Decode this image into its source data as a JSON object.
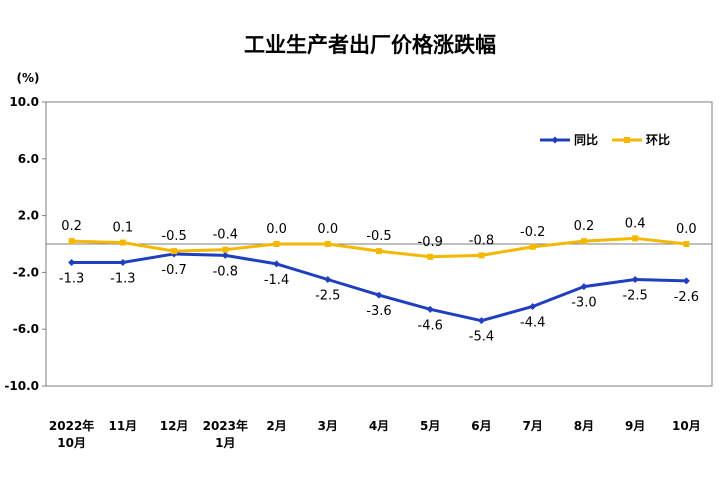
{
  "chart_data": {
    "type": "line",
    "title": "工业生产者出厂价格涨跌幅",
    "unit_label": "(%)",
    "ylim": [
      -10.0,
      10.0
    ],
    "yticks": [
      "10.0",
      "6.0",
      "2.0",
      "-2.0",
      "-6.0",
      "-10.0"
    ],
    "ytick_values": [
      10,
      6,
      2,
      -2,
      -6,
      -10
    ],
    "categories": [
      [
        "2022年",
        "10月"
      ],
      [
        "11月"
      ],
      [
        "12月"
      ],
      [
        "2023年",
        "1月"
      ],
      [
        "2月"
      ],
      [
        "3月"
      ],
      [
        "4月"
      ],
      [
        "5月"
      ],
      [
        "6月"
      ],
      [
        "7月"
      ],
      [
        "8月"
      ],
      [
        "9月"
      ],
      [
        "10月"
      ]
    ],
    "legend_position": "top-right",
    "grid": false,
    "series": [
      {
        "name": "同比",
        "color": "#1f3fbf",
        "values": [
          -1.3,
          -1.3,
          -0.7,
          -0.8,
          -1.4,
          -2.5,
          -3.6,
          -4.6,
          -5.4,
          -4.4,
          -3.0,
          -2.5,
          -2.6
        ],
        "labels": [
          "-1.3",
          "-1.3",
          "-0.7",
          "-0.8",
          "-1.4",
          "-2.5",
          "-3.6",
          "-4.6",
          "-5.4",
          "-4.4",
          "-3.0",
          "-2.5",
          "-2.6"
        ],
        "label_position": "below"
      },
      {
        "name": "环比",
        "color": "#f5b800",
        "values": [
          0.2,
          0.1,
          -0.5,
          -0.4,
          0.0,
          0.0,
          -0.5,
          -0.9,
          -0.8,
          -0.2,
          0.2,
          0.4,
          0.0
        ],
        "labels": [
          "0.2",
          "0.1",
          "-0.5",
          "-0.4",
          "0.0",
          "0.0",
          "-0.5",
          "-0.9",
          "-0.8",
          "-0.2",
          "0.2",
          "0.4",
          "0.0"
        ],
        "label_position": "above"
      }
    ]
  }
}
